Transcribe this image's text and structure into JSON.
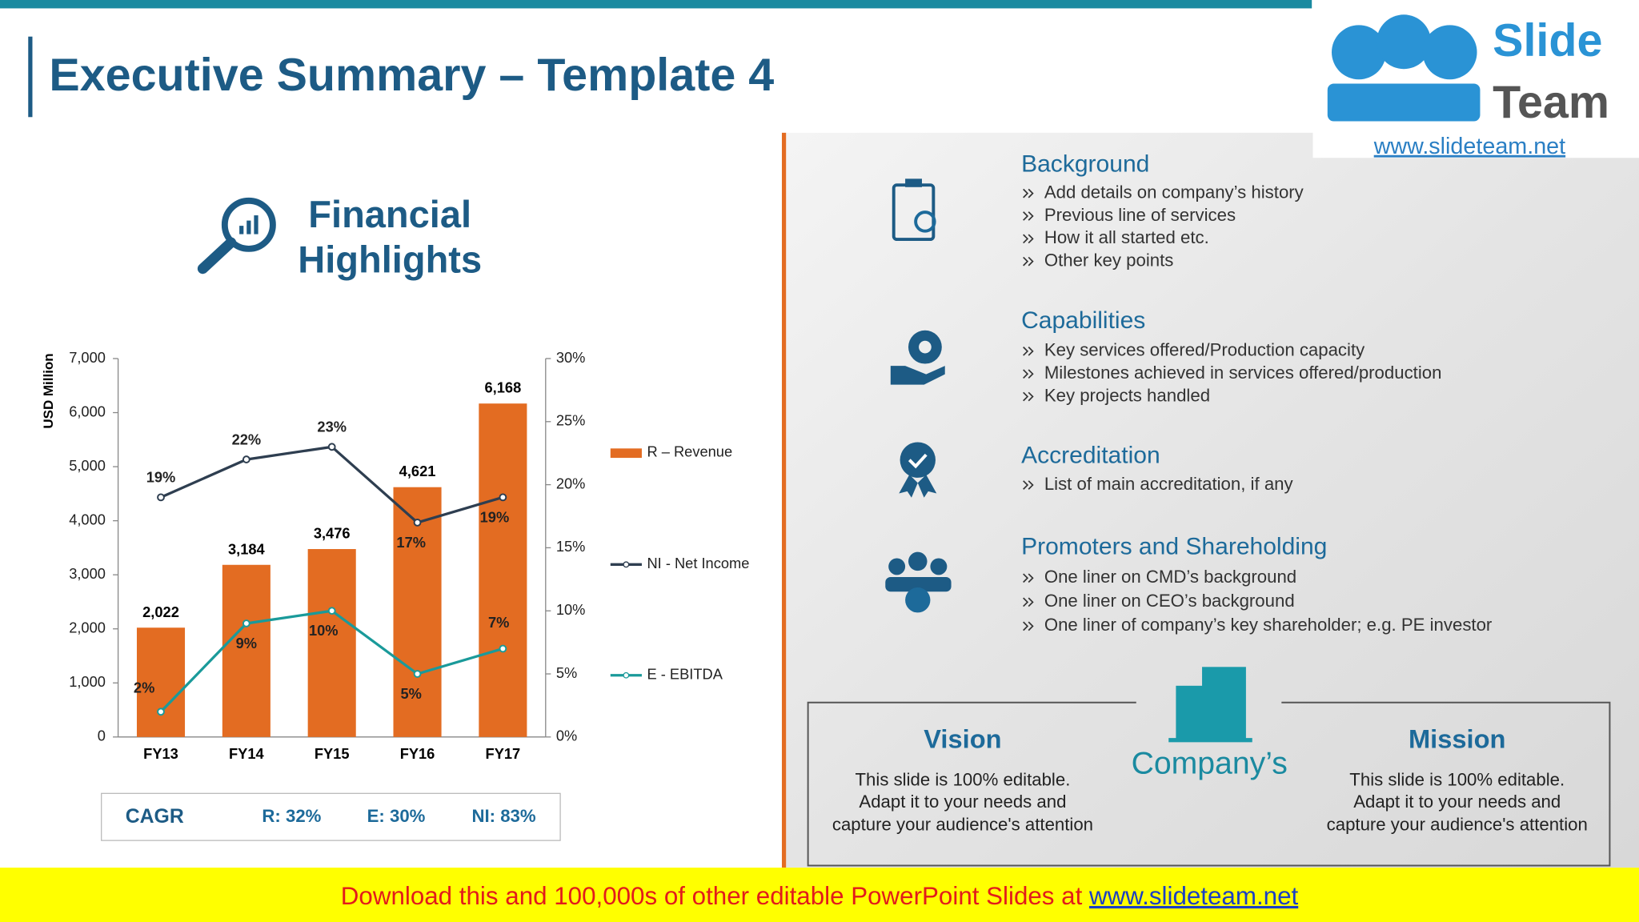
{
  "header": {
    "title": "Executive Summary – Template 4"
  },
  "logo": {
    "word1": "Slide",
    "word2": "Team",
    "url": "www.slideteam.net"
  },
  "highlights": {
    "heading": [
      "Financial",
      "Highlights"
    ]
  },
  "chart_data": {
    "type": "bar",
    "ylabel": "USD Million",
    "categories": [
      "FY13",
      "FY14",
      "FY15",
      "FY16",
      "FY17"
    ],
    "series": [
      {
        "name": "R – Revenue",
        "color": "#e36c22",
        "type": "bar",
        "values": [
          2022,
          3184,
          3476,
          4621,
          6168
        ],
        "value_labels": [
          "2,022",
          "3,184",
          "3,476",
          "4,621",
          "6,168"
        ]
      },
      {
        "name": "NI - Net Income",
        "color": "#2e3e50",
        "type": "line",
        "axis": "y2",
        "values": [
          19,
          22,
          23,
          17,
          19
        ],
        "value_labels": [
          "19%",
          "22%",
          "23%",
          "17%",
          "19%"
        ]
      },
      {
        "name": "E - EBITDA",
        "color": "#1a9a9a",
        "type": "line",
        "axis": "y2",
        "values": [
          2,
          9,
          10,
          5,
          7
        ],
        "value_labels": [
          "2%",
          "9%",
          "10%",
          "5%",
          "7%"
        ]
      }
    ],
    "ylim": [
      0,
      7000
    ],
    "yticks": [
      0,
      {
        "value": 1000,
        "label": "1,000"
      },
      {
        "value": 2000,
        "label": "2,000"
      },
      {
        "value": 3000,
        "label": "3,000"
      },
      {
        "value": 4000,
        "label": "4,000"
      },
      {
        "value": 5000,
        "label": "5,000"
      },
      {
        "value": 6000,
        "label": "6,000"
      },
      {
        "value": 7000,
        "label": "7,000"
      }
    ],
    "y2lim": [
      0,
      30
    ],
    "y2ticks": [
      {
        "value": 0,
        "label": "0%"
      },
      {
        "value": 5,
        "label": "5%"
      },
      {
        "value": 10,
        "label": "10%"
      },
      {
        "value": 15,
        "label": "15%"
      },
      {
        "value": 20,
        "label": "20%"
      },
      {
        "value": 25,
        "label": "25%"
      },
      {
        "value": 30,
        "label": "30%"
      }
    ],
    "legend": "right"
  },
  "cagr": {
    "label": "CAGR",
    "items": [
      "R: 32%",
      "E: 30%",
      "NI: 83%"
    ]
  },
  "sections": [
    {
      "title": "Background",
      "bullets": [
        "Add details on company’s history",
        "Previous line of services",
        "How it all started etc.",
        "Other key points"
      ]
    },
    {
      "title": "Capabilities",
      "bullets": [
        "Key services offered/Production capacity",
        "Milestones achieved in services offered/production",
        "Key projects handled"
      ]
    },
    {
      "title": "Accreditation",
      "bullets": [
        "List of main accreditation, if any"
      ]
    },
    {
      "title": "Promoters and Shareholding",
      "bullets": [
        "One liner on CMD’s background",
        "One liner on CEO’s background",
        "One liner of company’s key shareholder; e.g. PE investor"
      ]
    }
  ],
  "company": {
    "label": "Company’s",
    "vision": {
      "title": "Vision",
      "lines": [
        "This slide is 100% editable.",
        "Adapt it to your needs and",
        "capture your audience's attention"
      ]
    },
    "mission": {
      "title": "Mission",
      "lines": [
        "This slide is 100% editable.",
        "Adapt it to your needs and",
        "capture your audience's attention"
      ]
    }
  },
  "banner": {
    "text": "Download this and 100,000s of other editable PowerPoint Slides at ",
    "link": "www.slideteam.net"
  }
}
